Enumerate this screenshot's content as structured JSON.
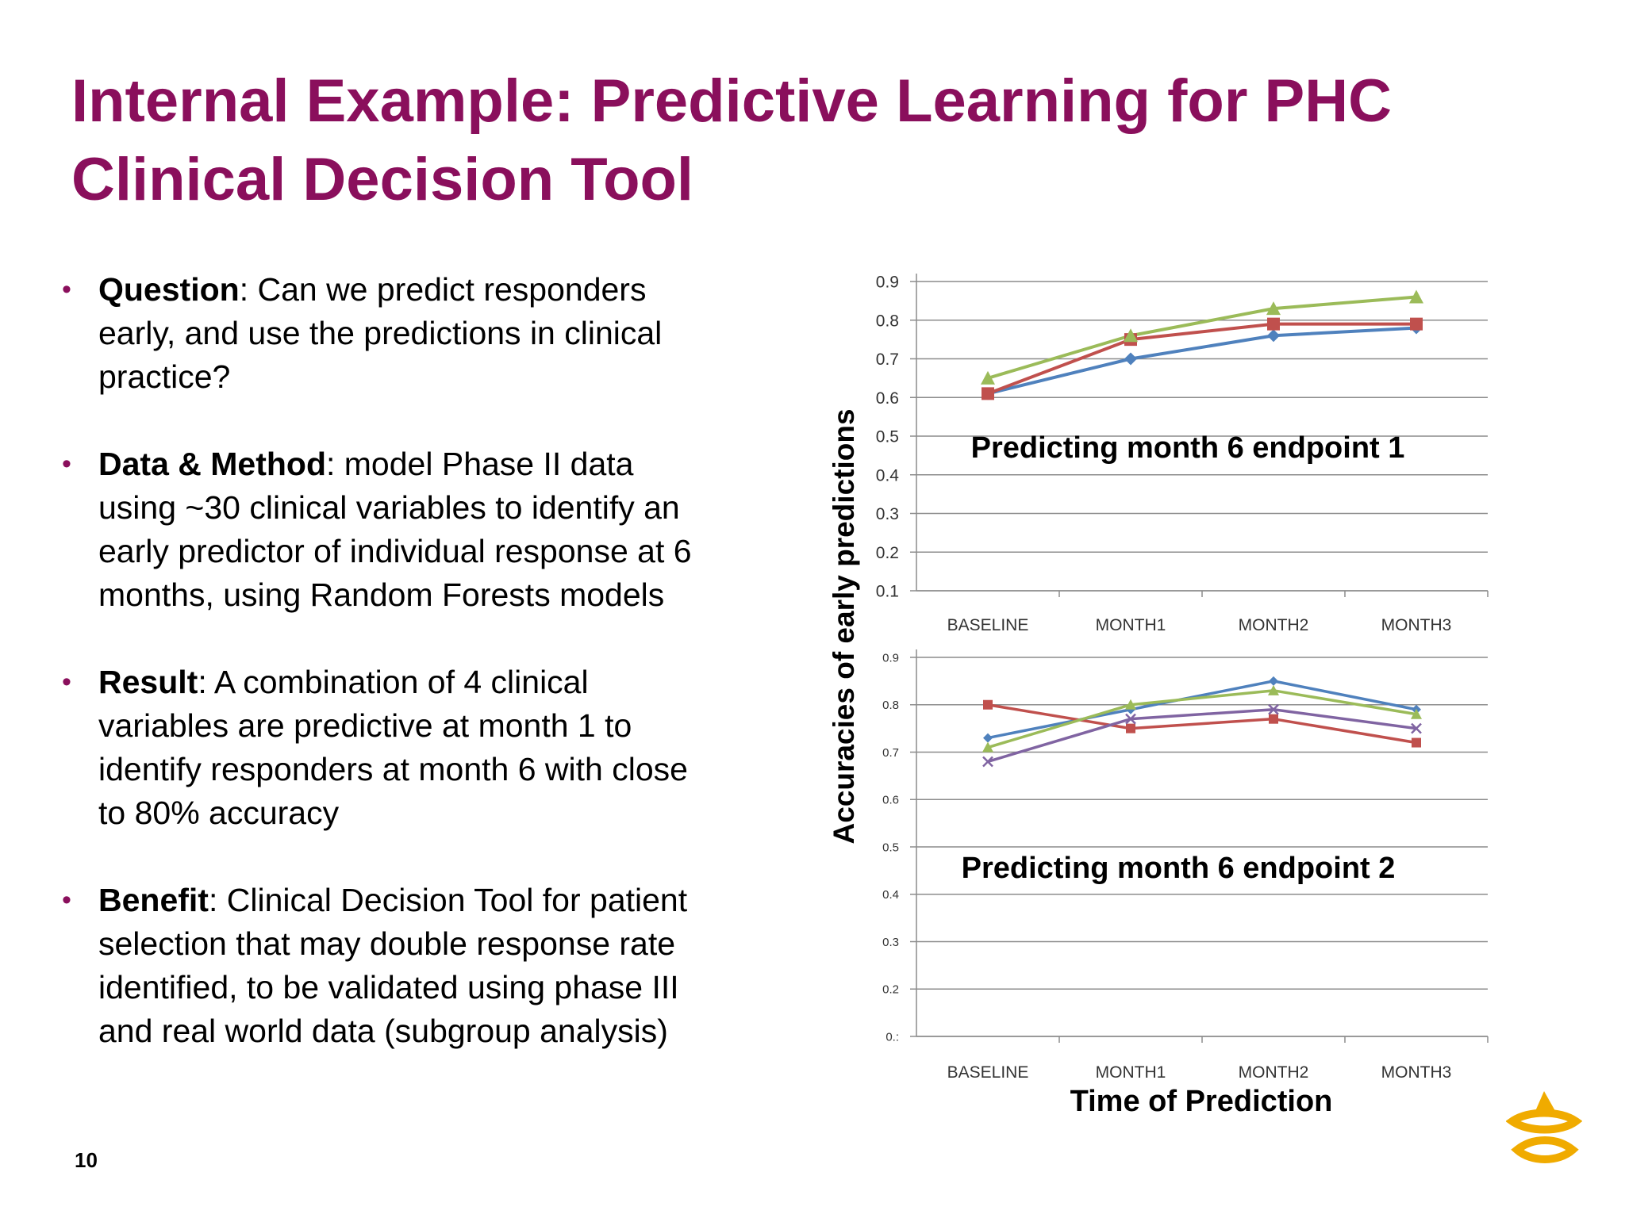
{
  "slide": {
    "title_lines": [
      "Internal Example: Predictive Learning for PHC",
      "Clinical Decision Tool"
    ],
    "page_number": "10",
    "bullets": [
      {
        "term": "Question",
        "lines": [
          ": Can we predict responders",
          "early, and use the predictions in clinical",
          "practice?"
        ]
      },
      {
        "term": "Data & Method",
        "lines": [
          ": model Phase II data",
          "using ~30 clinical variables to identify an",
          "early predictor of individual response at 6",
          "months, using Random Forests models"
        ]
      },
      {
        "term": "Result",
        "lines": [
          ": A combination of 4 clinical",
          "variables are predictive at month 1 to",
          "identify responders at month 6 with close",
          "to 80% accuracy"
        ]
      },
      {
        "term": "Benefit",
        "lines": [
          ": Clinical Decision Tool for patient",
          "selection that may double response rate",
          "identified, to be validated using phase III",
          "and real world data (subgroup analysis)"
        ]
      }
    ],
    "logo_icon": "astrazeneca-logo-icon"
  },
  "chart_labels": {
    "ylabel": "Accuracies of early predictions",
    "xlabel": "Time of Prediction"
  },
  "chart_data": [
    {
      "type": "line",
      "title": "Predicting month 6 endpoint 1",
      "categories": [
        "BASELINE",
        "MONTH1",
        "MONTH2",
        "MONTH3"
      ],
      "y_ticks": [
        "0.1",
        "0.2",
        "0.3",
        "0.4",
        "0.5",
        "0.6",
        "0.7",
        "0.8",
        "0.9"
      ],
      "ylim": [
        0.1,
        0.9
      ],
      "grid": true,
      "legend": "none",
      "series": [
        {
          "values": [
            0.61,
            0.7,
            0.76,
            0.78
          ],
          "color": "#4f81bd",
          "marker": "diamond"
        },
        {
          "values": [
            0.61,
            0.75,
            0.79,
            0.79
          ],
          "color": "#c0504d",
          "marker": "square"
        },
        {
          "values": [
            0.65,
            0.76,
            0.83,
            0.86
          ],
          "color": "#9bbb59",
          "marker": "triangle"
        }
      ]
    },
    {
      "type": "line",
      "title": "Predicting month 6 endpoint 2",
      "categories": [
        "BASELINE",
        "MONTH1",
        "MONTH2",
        "MONTH3"
      ],
      "y_ticks": [
        "0.:",
        "0.2",
        "0.3",
        "0.4",
        "0.5",
        "0.6",
        "0.7",
        "0.8",
        "0.9"
      ],
      "ylim": [
        0.1,
        0.9
      ],
      "grid": true,
      "legend": "none",
      "series": [
        {
          "values": [
            0.73,
            0.79,
            0.85,
            0.79
          ],
          "color": "#4f81bd",
          "marker": "diamond"
        },
        {
          "values": [
            0.8,
            0.75,
            0.77,
            0.72
          ],
          "color": "#c0504d",
          "marker": "square"
        },
        {
          "values": [
            0.71,
            0.8,
            0.83,
            0.78
          ],
          "color": "#9bbb59",
          "marker": "triangle"
        },
        {
          "values": [
            0.68,
            0.77,
            0.79,
            0.75
          ],
          "color": "#8064a2",
          "marker": "x"
        }
      ]
    }
  ]
}
